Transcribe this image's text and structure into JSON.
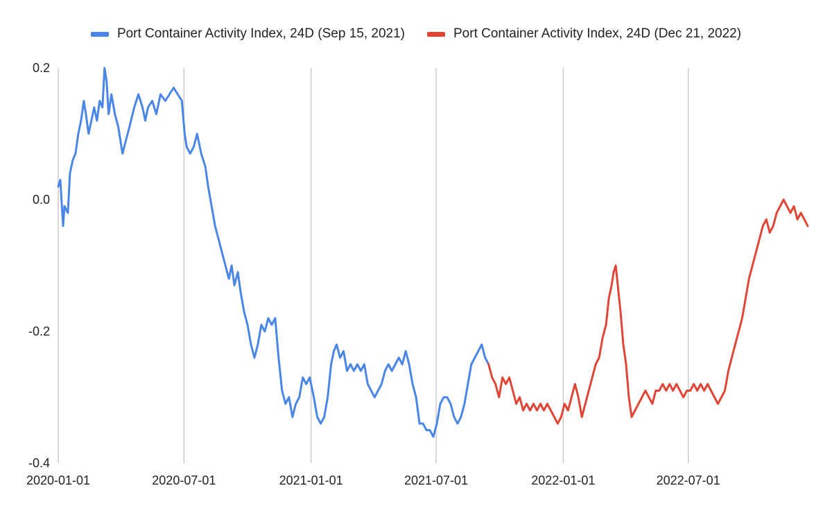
{
  "chart_data": {
    "type": "line",
    "title": "",
    "xlabel": "",
    "ylabel": "",
    "x_range": [
      "2020-01-01",
      "2022-12-31"
    ],
    "ylim": [
      -0.4,
      0.2
    ],
    "y_ticks": [
      0.2,
      0.0,
      -0.2,
      -0.4
    ],
    "y_tick_labels": [
      "0.2",
      "0.0",
      "-0.2",
      "-0.4"
    ],
    "x_ticks": [
      "2020-01-01",
      "2020-07-01",
      "2021-01-01",
      "2021-07-01",
      "2022-01-01",
      "2022-07-01"
    ],
    "x_tick_labels": [
      "2020-01-01",
      "2020-07-01",
      "2021-01-01",
      "2021-07-01",
      "2022-01-01",
      "2022-07-01"
    ],
    "grid": "vertical",
    "legend_position": "top",
    "series": [
      {
        "name": "Port Container Activity Index, 24D (Sep 15, 2021)",
        "color": "#4a86e8",
        "points": [
          [
            "2020-01-01",
            0.02
          ],
          [
            "2020-01-04",
            0.03
          ],
          [
            "2020-01-08",
            -0.04
          ],
          [
            "2020-01-10",
            -0.01
          ],
          [
            "2020-01-15",
            -0.02
          ],
          [
            "2020-01-18",
            0.04
          ],
          [
            "2020-01-22",
            0.06
          ],
          [
            "2020-01-26",
            0.07
          ],
          [
            "2020-01-30",
            0.1
          ],
          [
            "2020-02-03",
            0.12
          ],
          [
            "2020-02-07",
            0.15
          ],
          [
            "2020-02-10",
            0.13
          ],
          [
            "2020-02-14",
            0.1
          ],
          [
            "2020-02-18",
            0.12
          ],
          [
            "2020-02-22",
            0.14
          ],
          [
            "2020-02-26",
            0.12
          ],
          [
            "2020-03-01",
            0.15
          ],
          [
            "2020-03-05",
            0.14
          ],
          [
            "2020-03-08",
            0.2
          ],
          [
            "2020-03-11",
            0.18
          ],
          [
            "2020-03-14",
            0.13
          ],
          [
            "2020-03-18",
            0.16
          ],
          [
            "2020-03-23",
            0.13
          ],
          [
            "2020-03-28",
            0.11
          ],
          [
            "2020-04-03",
            0.07
          ],
          [
            "2020-04-08",
            0.09
          ],
          [
            "2020-04-13",
            0.11
          ],
          [
            "2020-04-20",
            0.14
          ],
          [
            "2020-04-26",
            0.16
          ],
          [
            "2020-05-02",
            0.14
          ],
          [
            "2020-05-06",
            0.12
          ],
          [
            "2020-05-10",
            0.14
          ],
          [
            "2020-05-16",
            0.15
          ],
          [
            "2020-05-22",
            0.13
          ],
          [
            "2020-05-28",
            0.16
          ],
          [
            "2020-06-04",
            0.15
          ],
          [
            "2020-06-10",
            0.16
          ],
          [
            "2020-06-16",
            0.17
          ],
          [
            "2020-06-22",
            0.16
          ],
          [
            "2020-06-28",
            0.15
          ],
          [
            "2020-07-02",
            0.1
          ],
          [
            "2020-07-05",
            0.08
          ],
          [
            "2020-07-10",
            0.07
          ],
          [
            "2020-07-15",
            0.08
          ],
          [
            "2020-07-20",
            0.1
          ],
          [
            "2020-07-26",
            0.07
          ],
          [
            "2020-08-01",
            0.05
          ],
          [
            "2020-08-05",
            0.02
          ],
          [
            "2020-08-10",
            -0.01
          ],
          [
            "2020-08-15",
            -0.04
          ],
          [
            "2020-08-20",
            -0.06
          ],
          [
            "2020-08-25",
            -0.08
          ],
          [
            "2020-08-30",
            -0.1
          ],
          [
            "2020-09-04",
            -0.12
          ],
          [
            "2020-09-08",
            -0.1
          ],
          [
            "2020-09-12",
            -0.13
          ],
          [
            "2020-09-17",
            -0.11
          ],
          [
            "2020-09-21",
            -0.14
          ],
          [
            "2020-09-26",
            -0.17
          ],
          [
            "2020-10-01",
            -0.19
          ],
          [
            "2020-10-06",
            -0.22
          ],
          [
            "2020-10-11",
            -0.24
          ],
          [
            "2020-10-16",
            -0.22
          ],
          [
            "2020-10-21",
            -0.19
          ],
          [
            "2020-10-26",
            -0.2
          ],
          [
            "2020-10-31",
            -0.18
          ],
          [
            "2020-11-05",
            -0.19
          ],
          [
            "2020-11-10",
            -0.18
          ],
          [
            "2020-11-15",
            -0.24
          ],
          [
            "2020-11-20",
            -0.29
          ],
          [
            "2020-11-25",
            -0.31
          ],
          [
            "2020-11-30",
            -0.3
          ],
          [
            "2020-12-05",
            -0.33
          ],
          [
            "2020-12-10",
            -0.31
          ],
          [
            "2020-12-15",
            -0.3
          ],
          [
            "2020-12-20",
            -0.27
          ],
          [
            "2020-12-25",
            -0.28
          ],
          [
            "2020-12-30",
            -0.27
          ],
          [
            "2021-01-05",
            -0.3
          ],
          [
            "2021-01-10",
            -0.33
          ],
          [
            "2021-01-15",
            -0.34
          ],
          [
            "2021-01-20",
            -0.33
          ],
          [
            "2021-01-25",
            -0.3
          ],
          [
            "2021-01-30",
            -0.25
          ],
          [
            "2021-02-03",
            -0.23
          ],
          [
            "2021-02-07",
            -0.22
          ],
          [
            "2021-02-12",
            -0.24
          ],
          [
            "2021-02-17",
            -0.23
          ],
          [
            "2021-02-22",
            -0.26
          ],
          [
            "2021-02-27",
            -0.25
          ],
          [
            "2021-03-04",
            -0.26
          ],
          [
            "2021-03-09",
            -0.25
          ],
          [
            "2021-03-14",
            -0.26
          ],
          [
            "2021-03-19",
            -0.25
          ],
          [
            "2021-03-24",
            -0.28
          ],
          [
            "2021-03-29",
            -0.29
          ],
          [
            "2021-04-03",
            -0.3
          ],
          [
            "2021-04-08",
            -0.29
          ],
          [
            "2021-04-13",
            -0.28
          ],
          [
            "2021-04-18",
            -0.26
          ],
          [
            "2021-04-23",
            -0.25
          ],
          [
            "2021-04-28",
            -0.26
          ],
          [
            "2021-05-03",
            -0.25
          ],
          [
            "2021-05-08",
            -0.24
          ],
          [
            "2021-05-13",
            -0.25
          ],
          [
            "2021-05-18",
            -0.23
          ],
          [
            "2021-05-23",
            -0.25
          ],
          [
            "2021-05-28",
            -0.28
          ],
          [
            "2021-06-02",
            -0.3
          ],
          [
            "2021-06-07",
            -0.34
          ],
          [
            "2021-06-12",
            -0.34
          ],
          [
            "2021-06-17",
            -0.35
          ],
          [
            "2021-06-22",
            -0.35
          ],
          [
            "2021-06-27",
            -0.36
          ],
          [
            "2021-07-02",
            -0.34
          ],
          [
            "2021-07-07",
            -0.31
          ],
          [
            "2021-07-12",
            -0.3
          ],
          [
            "2021-07-17",
            -0.3
          ],
          [
            "2021-07-22",
            -0.31
          ],
          [
            "2021-07-27",
            -0.33
          ],
          [
            "2021-08-01",
            -0.34
          ],
          [
            "2021-08-06",
            -0.33
          ],
          [
            "2021-08-11",
            -0.31
          ],
          [
            "2021-08-16",
            -0.28
          ],
          [
            "2021-08-21",
            -0.25
          ],
          [
            "2021-08-26",
            -0.24
          ],
          [
            "2021-08-31",
            -0.23
          ],
          [
            "2021-09-05",
            -0.22
          ],
          [
            "2021-09-10",
            -0.24
          ],
          [
            "2021-09-15",
            -0.25
          ]
        ]
      },
      {
        "name": "Port Container Activity Index, 24D (Dec 21, 2022)",
        "color": "#e04535",
        "points": [
          [
            "2021-09-15",
            -0.25
          ],
          [
            "2021-09-20",
            -0.27
          ],
          [
            "2021-09-25",
            -0.28
          ],
          [
            "2021-09-30",
            -0.3
          ],
          [
            "2021-10-05",
            -0.27
          ],
          [
            "2021-10-10",
            -0.28
          ],
          [
            "2021-10-15",
            -0.27
          ],
          [
            "2021-10-20",
            -0.29
          ],
          [
            "2021-10-25",
            -0.31
          ],
          [
            "2021-10-30",
            -0.3
          ],
          [
            "2021-11-04",
            -0.32
          ],
          [
            "2021-11-09",
            -0.31
          ],
          [
            "2021-11-14",
            -0.32
          ],
          [
            "2021-11-19",
            -0.31
          ],
          [
            "2021-11-24",
            -0.32
          ],
          [
            "2021-11-29",
            -0.31
          ],
          [
            "2021-12-04",
            -0.32
          ],
          [
            "2021-12-09",
            -0.31
          ],
          [
            "2021-12-14",
            -0.32
          ],
          [
            "2021-12-19",
            -0.33
          ],
          [
            "2021-12-24",
            -0.34
          ],
          [
            "2021-12-29",
            -0.33
          ],
          [
            "2022-01-03",
            -0.31
          ],
          [
            "2022-01-08",
            -0.32
          ],
          [
            "2022-01-13",
            -0.3
          ],
          [
            "2022-01-18",
            -0.28
          ],
          [
            "2022-01-23",
            -0.3
          ],
          [
            "2022-01-28",
            -0.33
          ],
          [
            "2022-02-02",
            -0.31
          ],
          [
            "2022-02-07",
            -0.29
          ],
          [
            "2022-02-12",
            -0.27
          ],
          [
            "2022-02-17",
            -0.25
          ],
          [
            "2022-02-22",
            -0.24
          ],
          [
            "2022-02-27",
            -0.21
          ],
          [
            "2022-03-04",
            -0.19
          ],
          [
            "2022-03-08",
            -0.15
          ],
          [
            "2022-03-12",
            -0.13
          ],
          [
            "2022-03-15",
            -0.11
          ],
          [
            "2022-03-18",
            -0.1
          ],
          [
            "2022-03-21",
            -0.13
          ],
          [
            "2022-03-25",
            -0.17
          ],
          [
            "2022-03-29",
            -0.22
          ],
          [
            "2022-04-02",
            -0.25
          ],
          [
            "2022-04-06",
            -0.3
          ],
          [
            "2022-04-10",
            -0.33
          ],
          [
            "2022-04-15",
            -0.32
          ],
          [
            "2022-04-20",
            -0.31
          ],
          [
            "2022-04-25",
            -0.3
          ],
          [
            "2022-04-30",
            -0.29
          ],
          [
            "2022-05-05",
            -0.3
          ],
          [
            "2022-05-10",
            -0.31
          ],
          [
            "2022-05-15",
            -0.29
          ],
          [
            "2022-05-20",
            -0.29
          ],
          [
            "2022-05-25",
            -0.28
          ],
          [
            "2022-05-30",
            -0.29
          ],
          [
            "2022-06-04",
            -0.28
          ],
          [
            "2022-06-09",
            -0.29
          ],
          [
            "2022-06-14",
            -0.28
          ],
          [
            "2022-06-19",
            -0.29
          ],
          [
            "2022-06-24",
            -0.3
          ],
          [
            "2022-06-29",
            -0.29
          ],
          [
            "2022-07-04",
            -0.29
          ],
          [
            "2022-07-09",
            -0.28
          ],
          [
            "2022-07-14",
            -0.29
          ],
          [
            "2022-07-19",
            -0.28
          ],
          [
            "2022-07-24",
            -0.29
          ],
          [
            "2022-07-29",
            -0.28
          ],
          [
            "2022-08-03",
            -0.29
          ],
          [
            "2022-08-08",
            -0.3
          ],
          [
            "2022-08-13",
            -0.31
          ],
          [
            "2022-08-18",
            -0.3
          ],
          [
            "2022-08-23",
            -0.29
          ],
          [
            "2022-08-28",
            -0.26
          ],
          [
            "2022-09-02",
            -0.24
          ],
          [
            "2022-09-07",
            -0.22
          ],
          [
            "2022-09-12",
            -0.2
          ],
          [
            "2022-09-17",
            -0.18
          ],
          [
            "2022-09-22",
            -0.15
          ],
          [
            "2022-09-27",
            -0.12
          ],
          [
            "2022-10-02",
            -0.1
          ],
          [
            "2022-10-07",
            -0.08
          ],
          [
            "2022-10-12",
            -0.06
          ],
          [
            "2022-10-17",
            -0.04
          ],
          [
            "2022-10-22",
            -0.03
          ],
          [
            "2022-10-27",
            -0.05
          ],
          [
            "2022-11-01",
            -0.04
          ],
          [
            "2022-11-06",
            -0.02
          ],
          [
            "2022-11-11",
            -0.01
          ],
          [
            "2022-11-16",
            0.0
          ],
          [
            "2022-11-21",
            -0.01
          ],
          [
            "2022-11-26",
            -0.02
          ],
          [
            "2022-12-01",
            -0.01
          ],
          [
            "2022-12-06",
            -0.03
          ],
          [
            "2022-12-11",
            -0.02
          ],
          [
            "2022-12-16",
            -0.03
          ],
          [
            "2022-12-21",
            -0.04
          ]
        ]
      }
    ]
  }
}
